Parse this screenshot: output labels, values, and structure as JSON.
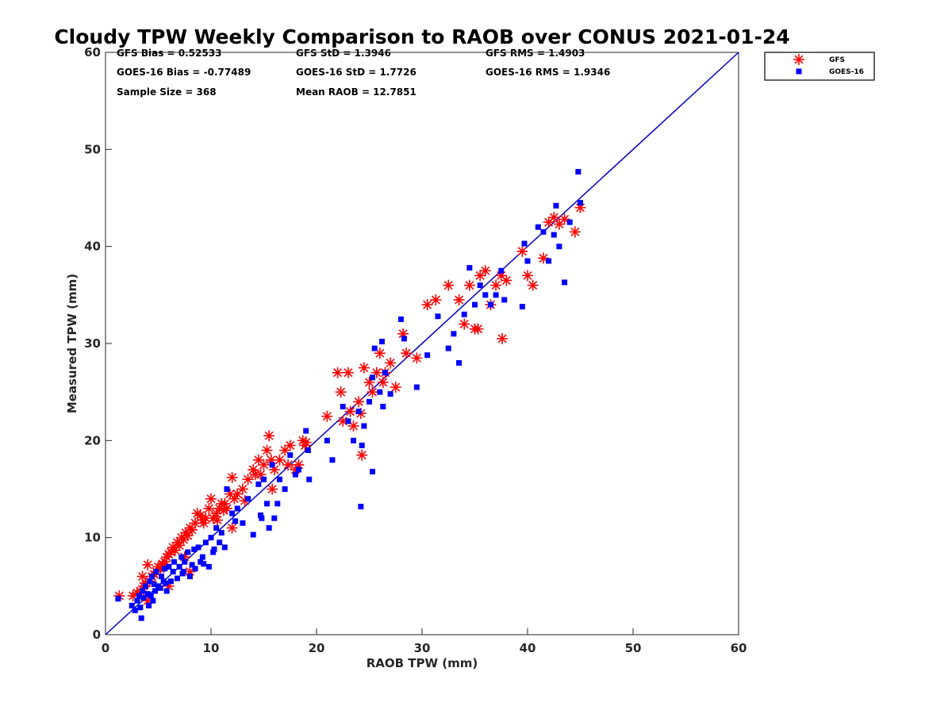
{
  "chart_data": {
    "type": "scatter",
    "title": "Cloudy TPW Weekly Comparison to RAOB over CONUS 2021-01-24",
    "xlabel": "RAOB TPW (mm)",
    "ylabel": "Measured TPW (mm)",
    "xlim": [
      0,
      60
    ],
    "ylim": [
      0,
      60
    ],
    "xticks": [
      "0",
      "10",
      "20",
      "30",
      "40",
      "50",
      "60"
    ],
    "yticks": [
      "0",
      "10",
      "20",
      "30",
      "40",
      "50",
      "60"
    ],
    "grid": false,
    "legend_position": "outside top-right",
    "reference_line": {
      "x": [
        0,
        60
      ],
      "y": [
        0,
        60
      ],
      "color": "#0000cc"
    },
    "stats": {
      "gfs_bias": "GFS Bias = 0.52533",
      "gfs_std": "GFS StD = 1.3946",
      "gfs_rms": "GFS RMS = 1.4903",
      "goes_bias": "GOES-16 Bias = -0.77489",
      "goes_std": "GOES-16 StD = 1.7726",
      "goes_rms": "GOES-16 RMS = 1.9346",
      "sample_size": "Sample Size = 368",
      "mean_raob": "Mean RAOB = 12.7851"
    },
    "series": [
      {
        "name": "GFS",
        "marker": "asterisk",
        "color": "#ff0000",
        "x": [
          1.3,
          2.6,
          3.0,
          3.3,
          3.6,
          3.8,
          4.0,
          4.2,
          4.4,
          4.6,
          4.8,
          5.0,
          5.2,
          5.4,
          5.6,
          5.8,
          6.0,
          6.2,
          6.4,
          6.6,
          6.8,
          7.0,
          7.2,
          7.4,
          7.6,
          7.8,
          8.0,
          8.2,
          8.5,
          8.7,
          9.0,
          9.2,
          9.5,
          9.8,
          10.0,
          10.2,
          10.5,
          10.8,
          11.0,
          11.2,
          11.5,
          11.8,
          12.0,
          12.2,
          12.5,
          13.0,
          13.5,
          14.0,
          14.5,
          14.7,
          15.0,
          15.3,
          15.5,
          15.7,
          16.0,
          16.5,
          17.0,
          17.5,
          18.0,
          18.3,
          18.7,
          19.0,
          21.0,
          22.0,
          22.3,
          22.5,
          23.0,
          23.5,
          24.0,
          24.3,
          24.5,
          25.0,
          25.3,
          25.7,
          26.0,
          26.5,
          27.0,
          27.5,
          28.2,
          28.5,
          29.5,
          30.5,
          31.3,
          32.5,
          33.5,
          34.0,
          34.5,
          35.0,
          35.5,
          36.0,
          36.5,
          37.0,
          37.5,
          38.0,
          39.5,
          40.0,
          40.5,
          41.5,
          42.0,
          42.5,
          43.0,
          43.5,
          44.5,
          45.0,
          3.5,
          5.5,
          7.5,
          9.3,
          10.6,
          11.3,
          12.0,
          13.2,
          14.2,
          15.8,
          17.3,
          18.9,
          23.2,
          24.2,
          26.3,
          35.3,
          37.6,
          4.0,
          6.0,
          8.0
        ],
        "y": [
          4.0,
          4.0,
          4.3,
          4.5,
          5.0,
          5.3,
          7.2,
          5.5,
          6.0,
          6.2,
          6.5,
          7.0,
          6.8,
          7.3,
          7.5,
          8.0,
          8.3,
          8.5,
          9.0,
          8.7,
          9.5,
          9.2,
          10.0,
          9.8,
          10.5,
          10.2,
          11.0,
          10.8,
          11.5,
          12.5,
          12.3,
          11.8,
          12.0,
          13.0,
          14.0,
          12.0,
          12.5,
          13.0,
          13.5,
          12.8,
          13.0,
          14.5,
          16.2,
          14.0,
          14.5,
          15.0,
          16.0,
          17.0,
          18.0,
          16.5,
          17.5,
          19.0,
          20.5,
          18.0,
          17.0,
          18.0,
          19.0,
          19.5,
          17.0,
          17.5,
          20.0,
          19.8,
          22.5,
          27.0,
          25.0,
          22.0,
          27.0,
          21.5,
          24.0,
          18.5,
          27.5,
          26.0,
          25.0,
          27.0,
          29.0,
          27.0,
          28.0,
          25.5,
          31.0,
          29.0,
          28.5,
          34.0,
          34.5,
          36.0,
          34.5,
          32.0,
          36.0,
          31.5,
          37.0,
          37.5,
          34.0,
          36.0,
          37.0,
          36.5,
          39.5,
          37.0,
          36.0,
          38.8,
          42.5,
          43.0,
          42.3,
          42.8,
          41.5,
          44.0,
          6.0,
          7.0,
          8.0,
          11.5,
          11.8,
          13.5,
          11.0,
          13.8,
          16.5,
          15.0,
          17.5,
          19.5,
          23.0,
          22.8,
          26.0,
          31.5,
          30.5,
          3.5,
          5.0,
          6.5
        ]
      },
      {
        "name": "GOES-16",
        "marker": "square",
        "color": "#0000ff",
        "x": [
          1.2,
          2.5,
          2.8,
          3.0,
          3.2,
          3.4,
          3.5,
          3.6,
          3.8,
          4.0,
          4.1,
          4.2,
          4.3,
          4.4,
          4.5,
          4.6,
          4.7,
          4.8,
          5.0,
          5.2,
          5.3,
          5.5,
          5.6,
          5.8,
          6.0,
          6.2,
          6.4,
          6.5,
          6.8,
          7.0,
          7.2,
          7.4,
          7.5,
          7.8,
          8.0,
          8.2,
          8.4,
          8.5,
          8.8,
          9.0,
          9.2,
          9.5,
          9.8,
          10.0,
          10.2,
          10.5,
          10.8,
          11.0,
          11.3,
          11.5,
          12.0,
          12.5,
          13.0,
          13.5,
          14.0,
          14.5,
          14.8,
          15.0,
          15.3,
          15.5,
          15.8,
          16.0,
          16.5,
          17.0,
          17.5,
          18.0,
          18.3,
          19.0,
          19.2,
          21.0,
          21.5,
          22.5,
          23.0,
          23.5,
          24.0,
          24.3,
          24.5,
          25.0,
          25.3,
          25.5,
          26.0,
          26.3,
          26.5,
          27.0,
          28.0,
          28.3,
          29.5,
          30.5,
          31.5,
          32.5,
          33.0,
          33.5,
          34.0,
          34.5,
          35.0,
          35.5,
          36.0,
          36.5,
          37.0,
          37.5,
          37.8,
          39.5,
          39.7,
          40.0,
          41.0,
          41.5,
          42.0,
          42.5,
          42.7,
          43.0,
          43.5,
          44.0,
          44.8,
          45.0,
          3.3,
          5.7,
          7.3,
          9.3,
          10.3,
          12.3,
          14.7,
          16.3,
          19.3,
          24.2,
          25.3,
          26.2
        ],
        "y": [
          3.7,
          3.0,
          2.5,
          3.5,
          4.0,
          1.7,
          4.5,
          3.8,
          5.0,
          4.2,
          3.0,
          5.5,
          4.0,
          6.0,
          3.5,
          5.2,
          4.5,
          6.5,
          5.0,
          4.8,
          6.0,
          5.5,
          6.8,
          4.5,
          7.0,
          5.5,
          6.5,
          7.5,
          5.8,
          7.0,
          8.0,
          6.5,
          7.5,
          8.5,
          6.0,
          7.2,
          8.8,
          6.8,
          9.0,
          7.5,
          8.0,
          9.5,
          7.0,
          10.0,
          8.5,
          11.0,
          9.5,
          10.5,
          9.0,
          15.0,
          12.5,
          13.0,
          11.5,
          14.0,
          10.3,
          15.5,
          12.0,
          16.0,
          13.5,
          11.0,
          17.5,
          12.0,
          16.0,
          15.0,
          18.5,
          16.5,
          17.0,
          21.0,
          19.0,
          20.0,
          18.0,
          23.5,
          22.0,
          20.0,
          23.0,
          19.5,
          21.5,
          24.0,
          26.5,
          29.5,
          25.0,
          23.5,
          27.0,
          24.8,
          32.5,
          30.5,
          25.5,
          28.8,
          32.8,
          29.5,
          31.0,
          28.0,
          33.0,
          37.8,
          34.0,
          36.0,
          35.0,
          34.0,
          35.0,
          37.5,
          34.5,
          33.8,
          40.3,
          38.5,
          42.0,
          41.5,
          38.5,
          41.2,
          44.2,
          40.0,
          36.3,
          42.5,
          47.7,
          44.5,
          2.8,
          5.3,
          6.3,
          7.3,
          8.8,
          11.7,
          12.3,
          13.5,
          16.0,
          13.2,
          16.8,
          30.2
        ]
      }
    ]
  }
}
